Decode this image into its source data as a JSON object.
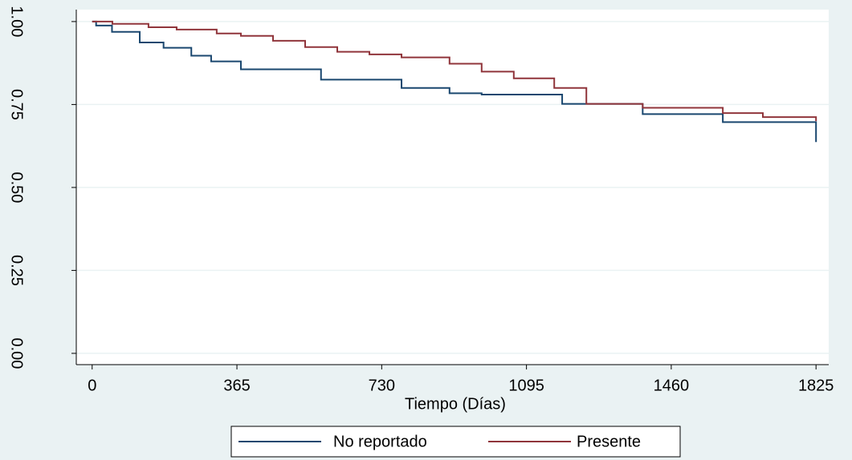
{
  "chart_data": {
    "type": "step",
    "x_label": "Tiempo (Días)",
    "xlim": [
      -40,
      1857
    ],
    "xticks": [
      0,
      365,
      730,
      1095,
      1460,
      1825
    ],
    "ylim": [
      -0.034,
      1.036
    ],
    "yticks": [
      {
        "value": 0,
        "label": "0.00"
      },
      {
        "value": 0.25,
        "label": "0.25"
      },
      {
        "value": 0.5,
        "label": "0.50"
      },
      {
        "value": 0.75,
        "label": "0.75"
      },
      {
        "value": 1,
        "label": "1.00"
      }
    ],
    "grid": true,
    "legend": "bottom",
    "series": [
      {
        "name": "No reportado",
        "color": "#1a476f",
        "x": [
          0,
          10,
          50,
          120,
          180,
          250,
          300,
          375,
          577,
          780,
          901,
          982,
          1185,
          1388,
          1590,
          1825
        ],
        "values": [
          1.0,
          0.988,
          0.969,
          0.937,
          0.921,
          0.897,
          0.88,
          0.856,
          0.825,
          0.8,
          0.784,
          0.78,
          0.752,
          0.721,
          0.697,
          0.637
        ]
      },
      {
        "name": "Presente",
        "color": "#90353b",
        "x": [
          0,
          51,
          142,
          213,
          314,
          375,
          456,
          537,
          618,
          699,
          780,
          901,
          982,
          1063,
          1165,
          1246,
          1388,
          1590,
          1691,
          1825
        ],
        "values": [
          1.0,
          0.993,
          0.983,
          0.976,
          0.964,
          0.957,
          0.942,
          0.923,
          0.909,
          0.901,
          0.892,
          0.873,
          0.849,
          0.829,
          0.8,
          0.752,
          0.74,
          0.724,
          0.712,
          0.7
        ]
      }
    ]
  }
}
